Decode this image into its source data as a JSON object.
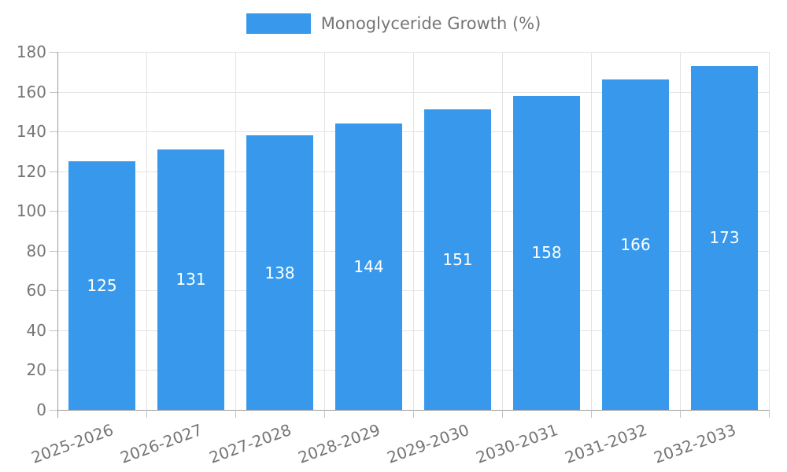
{
  "legend": {
    "label": "Monoglyceride Growth (%)"
  },
  "chart_data": {
    "type": "bar",
    "title": "",
    "categories": [
      "2025-2026",
      "2026-2027",
      "2027-2028",
      "2028-2029",
      "2029-2030",
      "2030-2031",
      "2031-2032",
      "2032-2033"
    ],
    "values": [
      125,
      131,
      138,
      144,
      151,
      158,
      166,
      173
    ],
    "series_name": "Monoglyceride Growth (%)",
    "xlabel": "",
    "ylabel": "",
    "ylim": [
      0,
      180
    ],
    "ytick_step": 20,
    "ytick_labels": [
      "0",
      "20",
      "40",
      "60",
      "80",
      "100",
      "120",
      "140",
      "160",
      "180"
    ],
    "grid": true,
    "legend_position": "top",
    "value_labels": "centered-inside-bars",
    "colors": {
      "bar": "#3899ec",
      "value_label": "#ffffff",
      "tick_label": "#757575",
      "legend_label": "#757575",
      "axis_line": "#9a9a9a",
      "gridline": "#e3e3e3",
      "background": "#ffffff"
    }
  }
}
